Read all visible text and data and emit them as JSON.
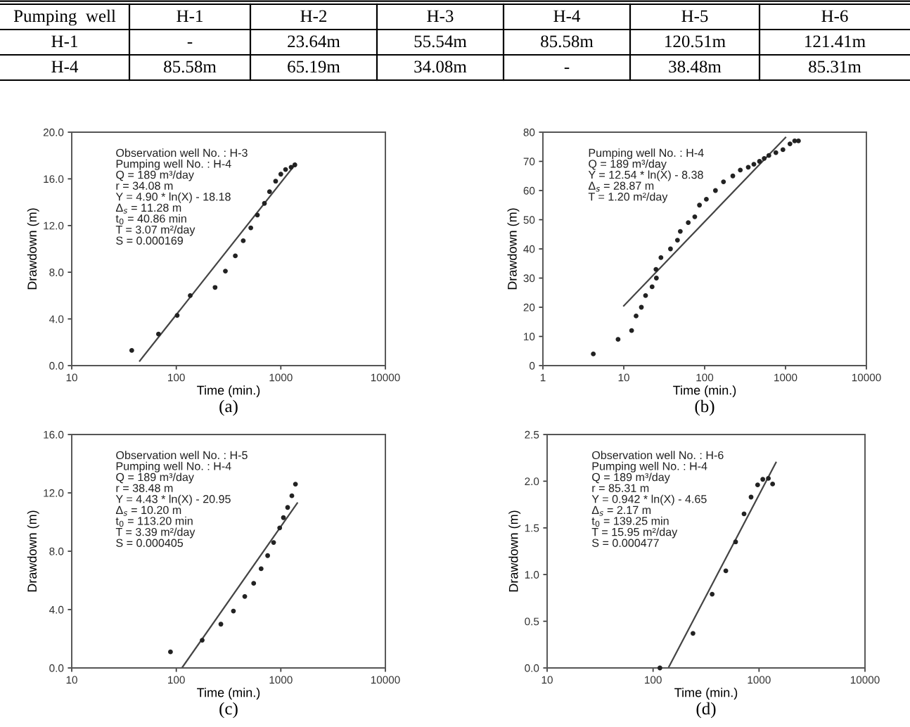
{
  "chart_data": [
    {
      "type": "other",
      "annotations": [
        "Pumping  well",
        "H-1",
        "H-2",
        "H-3",
        "H-4",
        "H-5",
        "H-6",
        "H-1",
        "-",
        "23.64m",
        "55.54m",
        "85.58m",
        "120.51m",
        "121.41m",
        "H-4",
        "85.58m",
        "65.19m",
        "34.08m",
        "-",
        "38.48m",
        "85.31m"
      ]
    },
    {
      "type": "scatter",
      "xlabel": "Time (min.)",
      "ylabel": "Drawdown (m)",
      "log": "x",
      "grid": false,
      "xlim": [
        10,
        10000
      ],
      "ylim": [
        0,
        20
      ],
      "xticks": [
        10,
        100,
        1000,
        10000
      ],
      "yticks": [
        {
          "value": 0,
          "label": "0.0"
        },
        {
          "value": 4,
          "label": "4.0"
        },
        {
          "value": 8,
          "label": "8.0"
        },
        {
          "value": 12,
          "label": "12.0"
        },
        {
          "value": 16,
          "label": "16.0"
        },
        {
          "value": 20,
          "label": "20.0"
        }
      ],
      "annotations": [
        "Observation well No. : H-3\nPumping well No. : H-4\nQ = 189 m³/day\nr = 34.08 m\nY = 4.90 * ln(X) - 18.18\nΔ$_{s}$ = 11.28 m\nt$_{0}$ = 40.86 min\nT = 3.07 m²/day\nS = 0.000169",
        "(a)"
      ],
      "series": [
        {
          "type": "scatter",
          "marker": "circle",
          "color": "#222222",
          "x": [
            37.5,
            67.6,
            102,
            136,
            235,
            295,
            367,
            437,
            516,
            597,
            697,
            780,
            892,
            1000,
            1110,
            1255,
            1362
          ],
          "values": [
            1.3,
            2.7,
            4.3,
            6.0,
            6.7,
            8.1,
            9.4,
            10.7,
            11.8,
            12.9,
            13.9,
            14.9,
            15.8,
            16.4,
            16.8,
            17.0,
            17.2
          ]
        },
        {
          "type": "line",
          "line_style": "solid",
          "color": "#444444",
          "x": [
            44.7,
            1390
          ],
          "values": [
            0.4,
            17.3
          ]
        }
      ]
    },
    {
      "type": "scatter",
      "xlabel": "Time (min.)",
      "ylabel": "Drawdown (m)",
      "log": "x",
      "grid": false,
      "xlim": [
        1,
        10000
      ],
      "ylim": [
        0,
        80
      ],
      "xticks": [
        1,
        10,
        100,
        1000,
        10000
      ],
      "yticks": [
        0,
        10,
        20,
        30,
        40,
        50,
        60,
        70,
        80
      ],
      "annotations": [
        "Pumping well No. : H-4\nQ = 189 m³/day\nY = 12.54 * ln(X) - 8.38\nΔ$_{s}$ = 28.87 m\nT = 1.20 m²/day",
        "(b)"
      ],
      "series": [
        {
          "type": "scatter",
          "marker": "circle",
          "color": "#222222",
          "x": [
            4.2,
            8.5,
            12.5,
            14.2,
            16.5,
            18.6,
            22.4,
            25.3,
            25,
            28.8,
            37.8,
            46.1,
            50,
            62.7,
            75.5,
            86.3,
            105,
            136,
            171,
            223,
            276,
            346,
            406,
            477,
            545,
            622,
            760,
            929,
            1135,
            1298,
            1445
          ],
          "values": [
            4,
            9,
            12,
            17,
            20,
            24,
            27,
            30,
            33,
            37,
            40,
            43,
            46,
            49,
            51,
            55,
            57,
            60,
            63,
            65,
            67,
            68,
            69,
            70,
            71,
            72,
            73,
            74,
            76,
            77,
            77
          ]
        },
        {
          "type": "line",
          "line_style": "solid",
          "color": "#444444",
          "x": [
            10,
            1000
          ],
          "values": [
            20.5,
            78.2
          ]
        }
      ]
    },
    {
      "type": "scatter",
      "xlabel": "Time (min.)",
      "ylabel": "Drawdown (m)",
      "log": "x",
      "grid": false,
      "xlim": [
        10,
        10000
      ],
      "ylim": [
        0,
        16
      ],
      "xticks": [
        10,
        100,
        1000,
        10000
      ],
      "yticks": [
        {
          "value": 0,
          "label": "0.0"
        },
        {
          "value": 4,
          "label": "4.0"
        },
        {
          "value": 8,
          "label": "8.0"
        },
        {
          "value": 12,
          "label": "12.0"
        },
        {
          "value": 16,
          "label": "16.0"
        }
      ],
      "annotations": [
        "Observation well No. : H-5\nPumping well No. : H-4\nQ = 189 m³/day\nr = 38.48 m\nY = 4.43 * ln(X) - 20.95\nΔ$_{s}$ = 10.20 m\nt$_{0}$ = 113.20 min\nT = 3.39 m²/day\nS = 0.000405",
        "(c)"
      ],
      "series": [
        {
          "type": "scatter",
          "marker": "circle",
          "color": "#222222",
          "x": [
            88,
            177,
            267,
            352,
            452,
            550,
            648,
            748,
            853,
            975,
            1059,
            1162,
            1275,
            1380
          ],
          "values": [
            1.1,
            1.9,
            3.0,
            3.9,
            4.9,
            5.8,
            6.8,
            7.7,
            8.6,
            9.6,
            10.3,
            11.0,
            11.8,
            12.6
          ]
        },
        {
          "type": "line",
          "line_style": "solid",
          "color": "#444444",
          "x": [
            113.2,
            1436
          ],
          "values": [
            0.0,
            11.3
          ]
        }
      ]
    },
    {
      "type": "scatter",
      "xlabel": "Time (min.)",
      "ylabel": "Drawdown (m)",
      "log": "x",
      "grid": false,
      "xlim": [
        10,
        10000
      ],
      "ylim": [
        0,
        2.5
      ],
      "xticks": [
        10,
        100,
        1000,
        10000
      ],
      "yticks": [
        {
          "value": 0,
          "label": "0.0"
        },
        {
          "value": 0.5,
          "label": "0.5"
        },
        {
          "value": 1,
          "label": "1.0"
        },
        {
          "value": 1.5,
          "label": "1.5"
        },
        {
          "value": 2,
          "label": "2.0"
        },
        {
          "value": 2.5,
          "label": "2.5"
        }
      ],
      "annotations": [
        "Observation well No. : H-6\nPumping well No. : H-4\nQ = 189 m³/day\nr = 85.31 m\nY = 0.942 * ln(X) - 4.65\nΔ$_{s}$ = 2.17 m\nt$_{0}$ = 139.25 min\nT = 15.95 m²/day\nS = 0.000477",
        "(d)"
      ],
      "series": [
        {
          "type": "scatter",
          "marker": "circle",
          "color": "#222222",
          "x": [
            116,
            238,
            361,
            486,
            601,
            722,
            841,
            970,
            1085,
            1225,
            1343
          ],
          "values": [
            0.0,
            0.37,
            0.79,
            1.04,
            1.35,
            1.65,
            1.83,
            1.96,
            2.02,
            2.03,
            1.97
          ]
        },
        {
          "type": "line",
          "line_style": "solid",
          "color": "#444444",
          "x": [
            139.25,
            1445
          ],
          "values": [
            0.0,
            2.2
          ]
        }
      ]
    }
  ]
}
